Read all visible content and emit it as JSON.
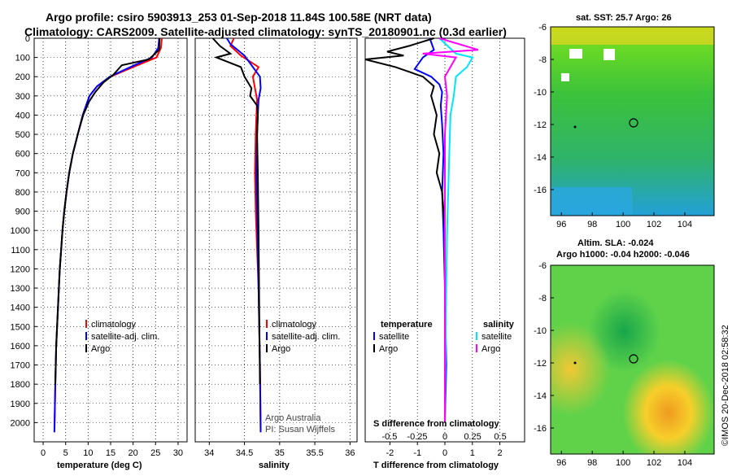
{
  "header": {
    "line1": "Argo profile: csiro 5903913_253 01-Sep-2018 11.84S 100.58E (NRT data)",
    "line2": "Climatology: CARS2009. Satellite-adjusted climatology: synTS_20180901.nc (0.3d earlier)"
  },
  "depth_axis": {
    "ticks": [
      "0",
      "100",
      "200",
      "300",
      "400",
      "500",
      "600",
      "700",
      "800",
      "900",
      "1000",
      "1100",
      "1200",
      "1300",
      "1400",
      "1500",
      "1600",
      "1700",
      "1800",
      "1900",
      "2000"
    ]
  },
  "panels": {
    "temperature": {
      "xlabel": "temperature (deg C)",
      "xticks": [
        "0",
        "5",
        "10",
        "15",
        "20",
        "25",
        "30"
      ],
      "legend": [
        "climatology",
        "satellite-adj. clim.",
        "Argo"
      ]
    },
    "salinity": {
      "xlabel": "salinity",
      "xticks": [
        "34",
        "34.5",
        "35",
        "35.5",
        "36"
      ],
      "legend": [
        "climatology",
        "satellite-adj. clim.",
        "Argo"
      ],
      "credit1": "Argo Australia",
      "credit2": "PI: Susan Wijffels"
    },
    "difference": {
      "xlabel": "T difference from climatology",
      "xticks": [
        "-2",
        "-1",
        "0",
        "1",
        "2"
      ],
      "s_xlabel": "S difference from climatology",
      "s_xticks": [
        "-0.5",
        "-0.25",
        "0",
        "0.25",
        "0.5"
      ],
      "legend_t_title": "temperature",
      "legend_s_title": "salinity",
      "legend_t": [
        "satellite",
        "Argo"
      ],
      "legend_s": [
        "satellite",
        "Argo"
      ]
    }
  },
  "maps": {
    "sst": {
      "title": "sat. SST: 25.7 Argo: 26",
      "yticks": [
        "-6",
        "-8",
        "-10",
        "-12",
        "-14",
        "-16"
      ],
      "xticks": [
        "96",
        "98",
        "100",
        "102",
        "104"
      ]
    },
    "sla": {
      "title1": "Altim. SLA: -0.024",
      "title2": "Argo h1000: -0.04 h2000: -0.046",
      "yticks": [
        "-6",
        "-8",
        "-10",
        "-12",
        "-14",
        "-16"
      ],
      "xticks": [
        "96",
        "98",
        "100",
        "102",
        "104"
      ]
    }
  },
  "credit_vertical": "©IMOS 20-Dec-2018 02:58:32",
  "colors": {
    "climatology": "#ff0000",
    "satellite": "#0000ff",
    "argo": "#000000",
    "sat_s": "#00e5ff",
    "argo_s": "#ff00ff"
  },
  "chart_data": [
    {
      "type": "line",
      "xlabel": "temperature (deg C)",
      "ylabel": "",
      "xlim": [
        -2,
        32
      ],
      "ylim": [
        2100,
        0
      ],
      "series": [
        {
          "name": "climatology",
          "x": [
            26.4,
            26.2,
            25.2,
            20,
            15,
            12,
            10.3,
            8.8,
            7.7,
            6.6,
            5.8,
            5.2,
            4.7,
            4.3,
            4.0,
            3.7,
            3.5,
            3.3,
            3.1,
            2.9,
            2.7,
            2.5
          ],
          "y": [
            0,
            50,
            100,
            150,
            200,
            250,
            300,
            400,
            500,
            600,
            700,
            800,
            900,
            1000,
            1100,
            1200,
            1300,
            1400,
            1500,
            1600,
            1800,
            2050
          ]
        },
        {
          "name": "satellite-adj. clim.",
          "x": [
            25.8,
            25.6,
            24.2,
            19.4,
            14.8,
            12,
            10.3,
            8.8,
            7.7,
            6.6,
            5.8,
            5.2,
            4.7,
            4.3,
            4.0,
            3.7,
            3.5,
            3.3,
            3.1,
            2.9,
            2.7,
            2.5
          ],
          "y": [
            0,
            50,
            100,
            150,
            200,
            250,
            300,
            400,
            500,
            600,
            700,
            800,
            900,
            1000,
            1100,
            1200,
            1300,
            1400,
            1500,
            1600,
            1800,
            2050
          ]
        },
        {
          "name": "Argo",
          "x": [
            25.9,
            25.8,
            23.5,
            17.5,
            15.6,
            13.4,
            11.6,
            10.2,
            8.9,
            7.7,
            6.6,
            5.8,
            5.2,
            4.7,
            4.3,
            4.0,
            3.7,
            3.5,
            3.3,
            3.1,
            2.9,
            2.7
          ],
          "y": [
            0,
            60,
            110,
            140,
            190,
            230,
            280,
            330,
            400,
            500,
            600,
            700,
            800,
            900,
            1000,
            1100,
            1200,
            1300,
            1400,
            1500,
            1600,
            1800
          ]
        }
      ]
    },
    {
      "type": "line",
      "xlabel": "salinity",
      "ylabel": "",
      "xlim": [
        33.8,
        36.1
      ],
      "ylim": [
        2100,
        0
      ],
      "series": [
        {
          "name": "climatology",
          "x": [
            34.35,
            34.3,
            34.45,
            34.7,
            34.62,
            34.65,
            34.68,
            34.67,
            34.66,
            34.65,
            34.66,
            34.68,
            34.7,
            34.71,
            34.72,
            34.73
          ],
          "y": [
            0,
            40,
            90,
            150,
            200,
            260,
            320,
            400,
            500,
            700,
            900,
            1100,
            1300,
            1500,
            1700,
            2050
          ]
        },
        {
          "name": "satellite-adj. clim.",
          "x": [
            34.25,
            34.3,
            34.5,
            34.62,
            34.72,
            34.73,
            34.7,
            34.69,
            34.68,
            34.67,
            34.68,
            34.69,
            34.7,
            34.71,
            34.72,
            34.73
          ],
          "y": [
            0,
            30,
            90,
            150,
            200,
            260,
            320,
            400,
            500,
            700,
            900,
            1100,
            1300,
            1500,
            1700,
            2050
          ]
        },
        {
          "name": "Argo",
          "x": [
            34.05,
            34.15,
            34.3,
            34.1,
            34.45,
            34.5,
            34.6,
            34.58,
            34.68,
            34.69,
            34.68,
            34.69,
            34.7,
            34.71,
            34.72
          ],
          "y": [
            0,
            40,
            80,
            100,
            150,
            200,
            260,
            300,
            350,
            400,
            500,
            700,
            1000,
            1400,
            1800
          ]
        }
      ]
    },
    {
      "type": "line",
      "xlabel": "T difference from climatology",
      "ylabel": "",
      "xlim": [
        -2.9,
        2.9
      ],
      "ylim": [
        2100,
        0
      ],
      "series": [
        {
          "name": "satellite",
          "x": [
            -0.55,
            -0.4,
            -0.8,
            -1.1,
            -0.5,
            -0.2,
            -0.1,
            -0.15,
            -0.1,
            -0.05,
            -0.1,
            -0.05,
            0,
            0.05,
            0
          ],
          "y": [
            0,
            60,
            100,
            160,
            200,
            240,
            280,
            350,
            450,
            600,
            800,
            1000,
            1300,
            1700,
            2000
          ]
        },
        {
          "name": "Argo",
          "x": [
            -0.4,
            -1.3,
            -2.1,
            -1.5,
            -2.9,
            -1.8,
            -0.8,
            -0.4,
            -0.5,
            -0.3,
            -0.4,
            -0.2,
            -0.3,
            -0.1,
            0
          ],
          "y": [
            0,
            40,
            70,
            90,
            110,
            150,
            200,
            250,
            300,
            400,
            500,
            600,
            700,
            800,
            1000
          ]
        }
      ]
    },
    {
      "type": "line",
      "xlabel": "S difference from climatology",
      "ylabel": "",
      "xlim": [
        -0.72,
        0.72
      ],
      "ylim": [
        2100,
        0
      ],
      "series": [
        {
          "name": "satellite",
          "x": [
            -0.05,
            0.1,
            0.25,
            0.2,
            0.1,
            0.08,
            0.05,
            0.04,
            0.03,
            0.02,
            0.01,
            0
          ],
          "y": [
            0,
            80,
            100,
            150,
            200,
            300,
            400,
            600,
            800,
            1000,
            1400,
            2000
          ]
        },
        {
          "name": "Argo",
          "x": [
            -0.05,
            0.3,
            -0.2,
            0.1,
            0.05,
            0,
            0.02,
            0,
            0,
            0
          ],
          "y": [
            0,
            60,
            80,
            100,
            150,
            200,
            300,
            500,
            1000,
            2000
          ]
        }
      ]
    }
  ]
}
